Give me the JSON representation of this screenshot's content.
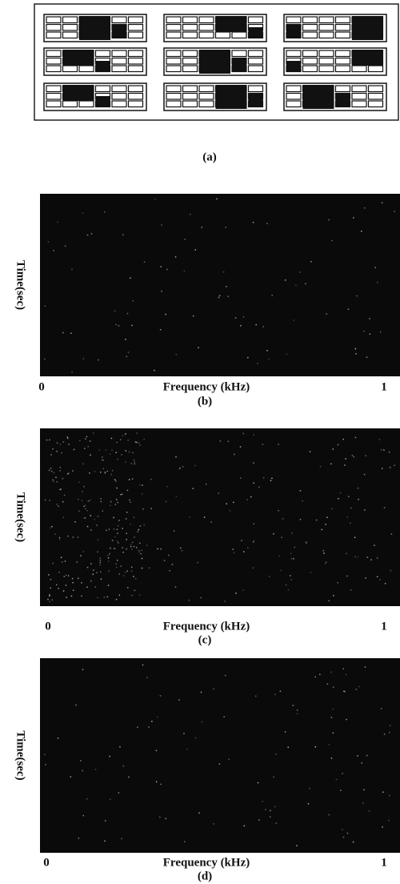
{
  "figure_a": {
    "caption": "(a)"
  },
  "spectrograms": [
    {
      "y_label": "Time(sec)",
      "x_start": "0",
      "x_label": "Frequency (kHz)",
      "x_end": "1",
      "caption": "(b)"
    },
    {
      "y_label": "Time(sec)",
      "x_start": "0",
      "x_label": "Frequency (kHz)",
      "x_end": "1",
      "caption": "(c)"
    },
    {
      "y_label": "Time(sec)",
      "x_start": "0",
      "x_label": "Frequency (kHz)",
      "x_end": "1",
      "caption": "(d)"
    }
  ]
}
